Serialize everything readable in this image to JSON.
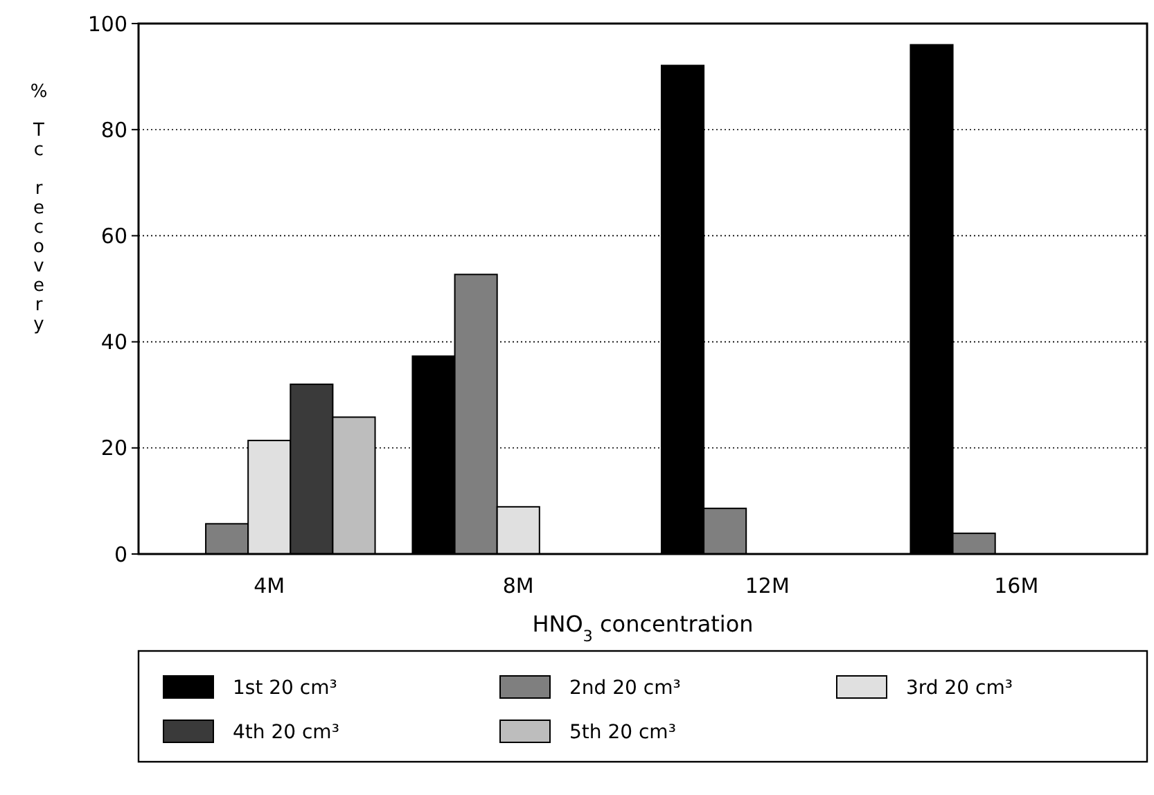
{
  "chart_data": {
    "type": "bar",
    "xlabel": "HNO$_{3}$ concentration",
    "ylabel": "% Tc recovery",
    "categories": [
      "4M",
      "8M",
      "12M",
      "16M"
    ],
    "series": [
      {
        "name": "1st 20 cm³",
        "color": "#000000",
        "values": [
          0,
          37.3,
          92.1,
          96
        ]
      },
      {
        "name": "2nd 20 cm³",
        "color": "#7f7f7f",
        "values": [
          5.7,
          52.7,
          8.6,
          3.9
        ]
      },
      {
        "name": "3rd 20 cm³",
        "color": "#e0e0e0",
        "values": [
          21.4,
          8.9,
          0,
          0
        ]
      },
      {
        "name": "4th 20 cm³",
        "color": "#3a3a3a",
        "values": [
          32,
          0,
          0,
          0
        ]
      },
      {
        "name": "5th 20 cm³",
        "color": "#bdbdbd",
        "values": [
          25.8,
          0,
          0,
          0
        ]
      }
    ],
    "ylim": [
      0,
      100
    ],
    "yticks": [
      0,
      20,
      40,
      60,
      80,
      100
    ],
    "grid": "y",
    "legend": "bottom"
  }
}
